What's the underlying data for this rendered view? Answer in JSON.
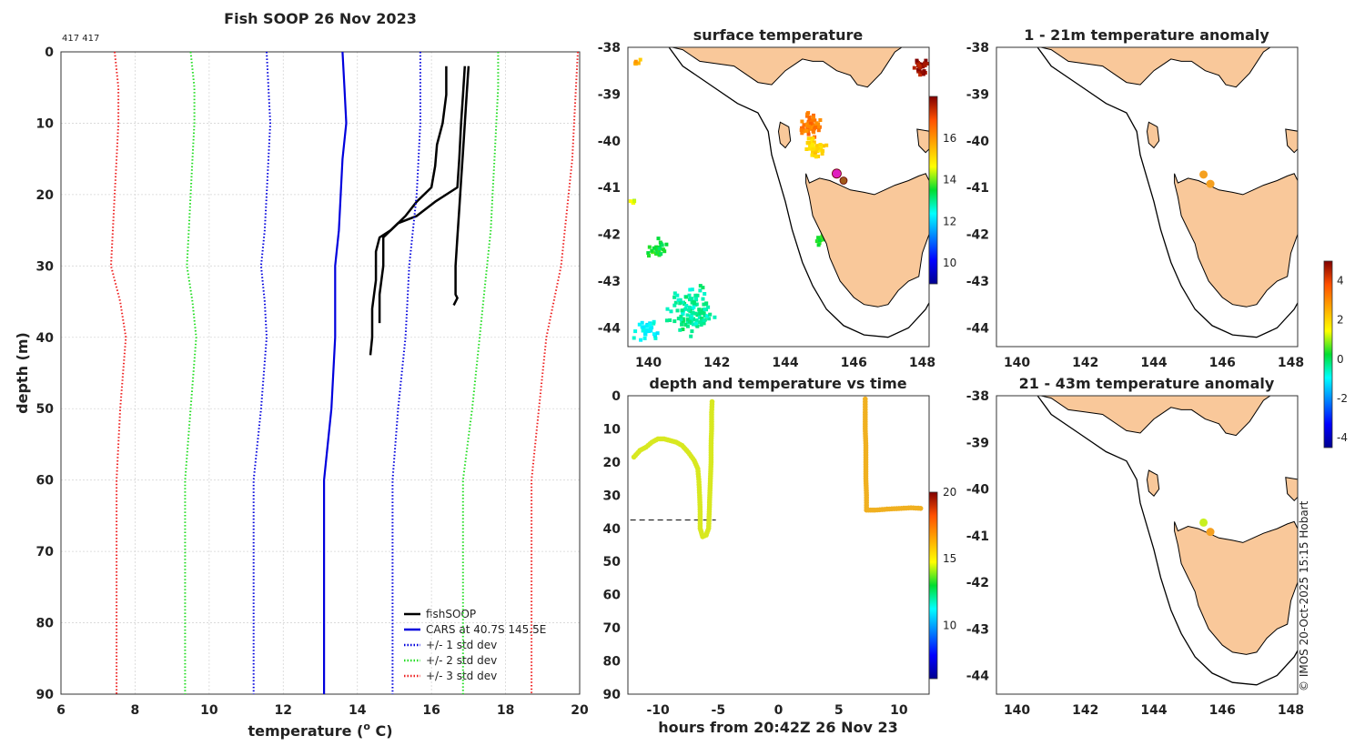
{
  "page": {
    "main_title": "Fish SOOP 26 Nov 2023",
    "corner_label": "417 417",
    "watermark": "© IMOS 20-Oct-2025 15:15 Hobart"
  },
  "chart_data": [
    {
      "id": "profile",
      "type": "line",
      "title": "Fish SOOP 26 Nov 2023",
      "xlabel_main": "temperature (",
      "xlabel_sup": "o",
      "xlabel_end": " C)",
      "ylabel": "depth (m)",
      "xlim": [
        6,
        20
      ],
      "ylim": [
        0,
        90
      ],
      "y_inverted": true,
      "xticks": [
        6,
        8,
        10,
        12,
        14,
        16,
        18,
        20
      ],
      "yticks": [
        0,
        10,
        20,
        30,
        40,
        50,
        60,
        70,
        80,
        90
      ],
      "legend": [
        "fishSOOP",
        "CARS at 40.7S 145.5E",
        "+/- 1 std dev",
        "+/- 2 std dev",
        "+/- 3 std dev"
      ],
      "series": [
        {
          "name": "fishSOOP cast 1",
          "color": "#000000",
          "style": "solid",
          "points": [
            [
              16.4,
              2
            ],
            [
              16.4,
              6
            ],
            [
              16.3,
              10
            ],
            [
              16.15,
              13
            ],
            [
              16.1,
              16
            ],
            [
              16.0,
              19
            ],
            [
              15.6,
              21
            ],
            [
              15.3,
              23
            ],
            [
              14.9,
              25
            ],
            [
              14.6,
              26
            ],
            [
              14.5,
              28
            ],
            [
              14.5,
              32
            ],
            [
              14.4,
              36
            ],
            [
              14.4,
              40
            ],
            [
              14.35,
              42.5
            ]
          ]
        },
        {
          "name": "fishSOOP cast 2",
          "color": "#000000",
          "style": "solid",
          "points": [
            [
              16.9,
              2
            ],
            [
              16.85,
              6
            ],
            [
              16.8,
              10
            ],
            [
              16.75,
              15
            ],
            [
              16.7,
              19
            ],
            [
              16.1,
              21
            ],
            [
              15.6,
              23
            ],
            [
              15.1,
              24
            ],
            [
              14.7,
              26
            ],
            [
              14.7,
              30
            ],
            [
              14.6,
              34
            ],
            [
              14.6,
              38
            ]
          ]
        },
        {
          "name": "fishSOOP cast 3",
          "color": "#000000",
          "style": "solid",
          "points": [
            [
              17.0,
              2
            ],
            [
              16.95,
              6
            ],
            [
              16.9,
              10
            ],
            [
              16.85,
              14
            ],
            [
              16.8,
              18
            ],
            [
              16.75,
              22
            ],
            [
              16.7,
              26
            ],
            [
              16.65,
              30
            ],
            [
              16.65,
              34
            ],
            [
              16.7,
              34.5
            ],
            [
              16.6,
              35.5
            ]
          ]
        },
        {
          "name": "CARS at 40.7S 145.5E",
          "color": "#0000dd",
          "style": "solid",
          "points": [
            [
              13.6,
              0
            ],
            [
              13.65,
              5
            ],
            [
              13.7,
              10
            ],
            [
              13.6,
              15
            ],
            [
              13.55,
              20
            ],
            [
              13.5,
              25
            ],
            [
              13.4,
              30
            ],
            [
              13.4,
              35
            ],
            [
              13.4,
              40
            ],
            [
              13.3,
              50
            ],
            [
              13.1,
              60
            ],
            [
              13.1,
              70
            ],
            [
              13.1,
              80
            ],
            [
              13.1,
              90
            ]
          ]
        },
        {
          "name": "CARS -1 std",
          "color": "#0000dd",
          "style": "dotted",
          "points": [
            [
              11.55,
              0
            ],
            [
              11.6,
              5
            ],
            [
              11.65,
              10
            ],
            [
              11.6,
              15
            ],
            [
              11.55,
              20
            ],
            [
              11.5,
              25
            ],
            [
              11.4,
              30
            ],
            [
              11.5,
              35
            ],
            [
              11.55,
              40
            ],
            [
              11.4,
              50
            ],
            [
              11.2,
              60
            ],
            [
              11.2,
              70
            ],
            [
              11.2,
              80
            ],
            [
              11.2,
              90
            ]
          ]
        },
        {
          "name": "CARS +1 std",
          "color": "#0000dd",
          "style": "dotted",
          "points": [
            [
              15.7,
              0
            ],
            [
              15.7,
              5
            ],
            [
              15.7,
              10
            ],
            [
              15.65,
              15
            ],
            [
              15.6,
              20
            ],
            [
              15.5,
              25
            ],
            [
              15.4,
              30
            ],
            [
              15.35,
              35
            ],
            [
              15.3,
              40
            ],
            [
              15.1,
              50
            ],
            [
              14.95,
              60
            ],
            [
              14.95,
              70
            ],
            [
              14.95,
              80
            ],
            [
              14.95,
              90
            ]
          ]
        },
        {
          "name": "CARS -2 std",
          "color": "#22dd22",
          "style": "dotted",
          "points": [
            [
              9.5,
              0
            ],
            [
              9.6,
              5
            ],
            [
              9.6,
              10
            ],
            [
              9.55,
              15
            ],
            [
              9.5,
              20
            ],
            [
              9.45,
              25
            ],
            [
              9.4,
              30
            ],
            [
              9.55,
              35
            ],
            [
              9.65,
              40
            ],
            [
              9.5,
              50
            ],
            [
              9.35,
              60
            ],
            [
              9.35,
              70
            ],
            [
              9.35,
              80
            ],
            [
              9.35,
              90
            ]
          ]
        },
        {
          "name": "CARS +2 std",
          "color": "#22dd22",
          "style": "dotted",
          "points": [
            [
              17.8,
              0
            ],
            [
              17.8,
              5
            ],
            [
              17.75,
              10
            ],
            [
              17.7,
              15
            ],
            [
              17.65,
              20
            ],
            [
              17.6,
              25
            ],
            [
              17.5,
              30
            ],
            [
              17.4,
              35
            ],
            [
              17.3,
              40
            ],
            [
              17.1,
              50
            ],
            [
              16.85,
              60
            ],
            [
              16.85,
              70
            ],
            [
              16.85,
              80
            ],
            [
              16.85,
              90
            ]
          ]
        },
        {
          "name": "CARS -3 std",
          "color": "#ee2222",
          "style": "dotted",
          "points": [
            [
              7.45,
              0
            ],
            [
              7.55,
              5
            ],
            [
              7.55,
              10
            ],
            [
              7.5,
              15
            ],
            [
              7.45,
              20
            ],
            [
              7.4,
              25
            ],
            [
              7.35,
              30
            ],
            [
              7.6,
              35
            ],
            [
              7.75,
              40
            ],
            [
              7.6,
              50
            ],
            [
              7.5,
              60
            ],
            [
              7.5,
              70
            ],
            [
              7.5,
              80
            ],
            [
              7.5,
              90
            ]
          ]
        },
        {
          "name": "CARS +3 std",
          "color": "#ee2222",
          "style": "dotted",
          "points": [
            [
              19.95,
              0
            ],
            [
              19.9,
              5
            ],
            [
              19.85,
              10
            ],
            [
              19.8,
              15
            ],
            [
              19.7,
              20
            ],
            [
              19.6,
              25
            ],
            [
              19.5,
              30
            ],
            [
              19.3,
              35
            ],
            [
              19.1,
              40
            ],
            [
              18.9,
              50
            ],
            [
              18.7,
              60
            ],
            [
              18.7,
              70
            ],
            [
              18.7,
              80
            ],
            [
              18.7,
              90
            ]
          ]
        }
      ]
    },
    {
      "id": "sst_map",
      "type": "heatmap",
      "title": "surface temperature",
      "xlim": [
        139.4,
        148.2
      ],
      "ylim": [
        -44.4,
        -38
      ],
      "xticks": [
        140,
        142,
        144,
        146,
        148
      ],
      "yticks": [
        -38,
        -39,
        -40,
        -41,
        -42,
        -43,
        -44
      ],
      "colorbar_ticks": [
        10,
        12,
        14,
        16
      ],
      "colorbar_range": [
        9,
        18
      ],
      "blobs": [
        {
          "lon": 144.7,
          "lat": -39.6,
          "val": 16.3,
          "spread": 0.25,
          "count": 60
        },
        {
          "lon": 144.8,
          "lat": -40.1,
          "val": 15.2,
          "spread": 0.25,
          "count": 50
        },
        {
          "lon": 145.0,
          "lat": -42.1,
          "val": 13.8,
          "spread": 0.15,
          "count": 18
        },
        {
          "lon": 140.2,
          "lat": -42.3,
          "val": 13.6,
          "spread": 0.25,
          "count": 28
        },
        {
          "lon": 141.2,
          "lat": -43.6,
          "val": 12.9,
          "spread": 0.55,
          "count": 120
        },
        {
          "lon": 139.9,
          "lat": -44.0,
          "val": 12.3,
          "spread": 0.3,
          "count": 30
        },
        {
          "lon": 147.9,
          "lat": -38.4,
          "val": 17.8,
          "spread": 0.2,
          "count": 30
        },
        {
          "lon": 139.6,
          "lat": -38.3,
          "val": 15.5,
          "spread": 0.1,
          "count": 6
        },
        {
          "lon": 139.5,
          "lat": -41.3,
          "val": 14.4,
          "spread": 0.08,
          "count": 6
        }
      ],
      "markers": [
        {
          "lon": 145.5,
          "lat": -40.7,
          "color": "#e020c0",
          "label": "vessel"
        },
        {
          "lon": 145.7,
          "lat": -40.85,
          "color": "#a05a1a",
          "label": "station"
        }
      ]
    },
    {
      "id": "timeseries",
      "type": "scatter",
      "title": "depth and temperature vs time",
      "xlabel": "hours from 20:42Z 26 Nov 23",
      "xlim": [
        -12.5,
        12.5
      ],
      "ylim": [
        0,
        90
      ],
      "y_inverted": true,
      "xticks": [
        -10,
        -5,
        0,
        5,
        10
      ],
      "yticks": [
        0,
        10,
        20,
        30,
        40,
        50,
        60,
        70,
        80,
        90
      ],
      "reference_depth": 37.5,
      "colorbar_ticks": [
        10,
        15,
        20
      ],
      "colorbar_range": [
        6,
        20
      ],
      "segments": [
        {
          "color": "#d8e820",
          "points": [
            [
              -12.0,
              18.5
            ],
            [
              -11.5,
              16.5
            ],
            [
              -11.0,
              15.5
            ],
            [
              -10.5,
              14
            ],
            [
              -10.0,
              13
            ],
            [
              -9.5,
              13
            ],
            [
              -9.0,
              13.5
            ],
            [
              -8.5,
              14
            ],
            [
              -8.0,
              15
            ],
            [
              -7.5,
              17
            ],
            [
              -7.0,
              19.5
            ],
            [
              -6.7,
              22
            ],
            [
              -6.6,
              26
            ],
            [
              -6.55,
              30
            ],
            [
              -6.5,
              35
            ],
            [
              -6.5,
              40
            ],
            [
              -6.3,
              42.5
            ],
            [
              -6.0,
              42
            ],
            [
              -5.8,
              40
            ],
            [
              -5.75,
              35
            ],
            [
              -5.7,
              30
            ],
            [
              -5.65,
              25
            ],
            [
              -5.6,
              20
            ],
            [
              -5.6,
              15
            ],
            [
              -5.55,
              10
            ],
            [
              -5.55,
              5
            ],
            [
              -5.5,
              1
            ]
          ]
        },
        {
          "color": "#f0b020",
          "points": [
            [
              7.2,
              1
            ],
            [
              7.2,
              5
            ],
            [
              7.2,
              10
            ],
            [
              7.25,
              15
            ],
            [
              7.25,
              20
            ],
            [
              7.25,
              25
            ],
            [
              7.3,
              30
            ],
            [
              7.3,
              34.5
            ],
            [
              8.0,
              34.5
            ],
            [
              9.0,
              34.2
            ],
            [
              10.0,
              34
            ],
            [
              11.0,
              33.8
            ],
            [
              12.0,
              34
            ]
          ]
        }
      ]
    },
    {
      "id": "anom1",
      "type": "scatter",
      "title": "1 - 21m temperature anomaly",
      "xlim": [
        139.4,
        148.2
      ],
      "ylim": [
        -44.4,
        -38
      ],
      "xticks": [
        140,
        142,
        144,
        146,
        148
      ],
      "yticks": [
        -38,
        -39,
        -40,
        -41,
        -42,
        -43,
        -44
      ],
      "markers": [
        {
          "lon": 145.45,
          "lat": -40.72,
          "color": "#f5a020",
          "label": "anomaly 2.5"
        },
        {
          "lon": 145.65,
          "lat": -40.92,
          "color": "#f5a020",
          "label": "anomaly 2.5"
        }
      ]
    },
    {
      "id": "anom2",
      "type": "scatter",
      "title": "21 - 43m temperature anomaly",
      "xlim": [
        139.4,
        148.2
      ],
      "ylim": [
        -44.4,
        -38
      ],
      "xticks": [
        140,
        142,
        144,
        146,
        148
      ],
      "yticks": [
        -38,
        -39,
        -40,
        -41,
        -42,
        -43,
        -44
      ],
      "colorbar_ticks": [
        -4,
        -2,
        0,
        2,
        4
      ],
      "colorbar_range": [
        -4.5,
        5
      ],
      "markers": [
        {
          "lon": 145.45,
          "lat": -40.72,
          "color": "#c8f020",
          "label": "anomaly 1"
        },
        {
          "lon": 145.65,
          "lat": -40.92,
          "color": "#f5a020",
          "label": "anomaly 2.5"
        }
      ]
    }
  ]
}
